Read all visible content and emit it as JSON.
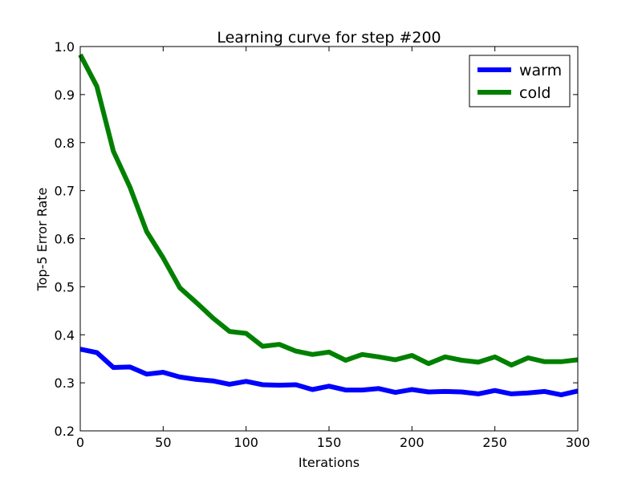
{
  "chart_data": {
    "type": "line",
    "title": "Learning curve for step #200",
    "xlabel": "Iterations",
    "ylabel": "Top-5 Error Rate",
    "xlim": [
      0,
      300
    ],
    "ylim": [
      0.2,
      1.0
    ],
    "xticks": [
      0,
      50,
      100,
      150,
      200,
      250,
      300
    ],
    "yticks": [
      0.2,
      0.3,
      0.4,
      0.5,
      0.6,
      0.7,
      0.8,
      0.9,
      1.0
    ],
    "xtick_labels": [
      "0",
      "50",
      "100",
      "150",
      "200",
      "250",
      "300"
    ],
    "ytick_labels": [
      "0.2",
      "0.3",
      "0.4",
      "0.5",
      "0.6",
      "0.7",
      "0.8",
      "0.9",
      "1.0"
    ],
    "grid": false,
    "legend_position": "top-right",
    "x": [
      0,
      10,
      20,
      30,
      40,
      50,
      60,
      70,
      80,
      90,
      100,
      110,
      120,
      130,
      140,
      150,
      160,
      170,
      180,
      190,
      200,
      210,
      220,
      230,
      240,
      250,
      260,
      270,
      280,
      290,
      300
    ],
    "series": [
      {
        "name": "warm",
        "color": "#0000ff",
        "values": [
          0.37,
          0.363,
          0.332,
          0.333,
          0.318,
          0.322,
          0.312,
          0.307,
          0.304,
          0.297,
          0.303,
          0.296,
          0.295,
          0.296,
          0.286,
          0.293,
          0.285,
          0.285,
          0.288,
          0.28,
          0.286,
          0.281,
          0.282,
          0.281,
          0.277,
          0.284,
          0.277,
          0.279,
          0.282,
          0.275,
          0.283
        ]
      },
      {
        "name": "cold",
        "color": "#008000",
        "values": [
          0.983,
          0.917,
          0.782,
          0.707,
          0.615,
          0.56,
          0.498,
          0.467,
          0.435,
          0.407,
          0.403,
          0.376,
          0.38,
          0.366,
          0.359,
          0.364,
          0.347,
          0.359,
          0.354,
          0.348,
          0.357,
          0.34,
          0.354,
          0.347,
          0.343,
          0.354,
          0.337,
          0.352,
          0.344,
          0.344,
          0.348
        ]
      }
    ]
  }
}
